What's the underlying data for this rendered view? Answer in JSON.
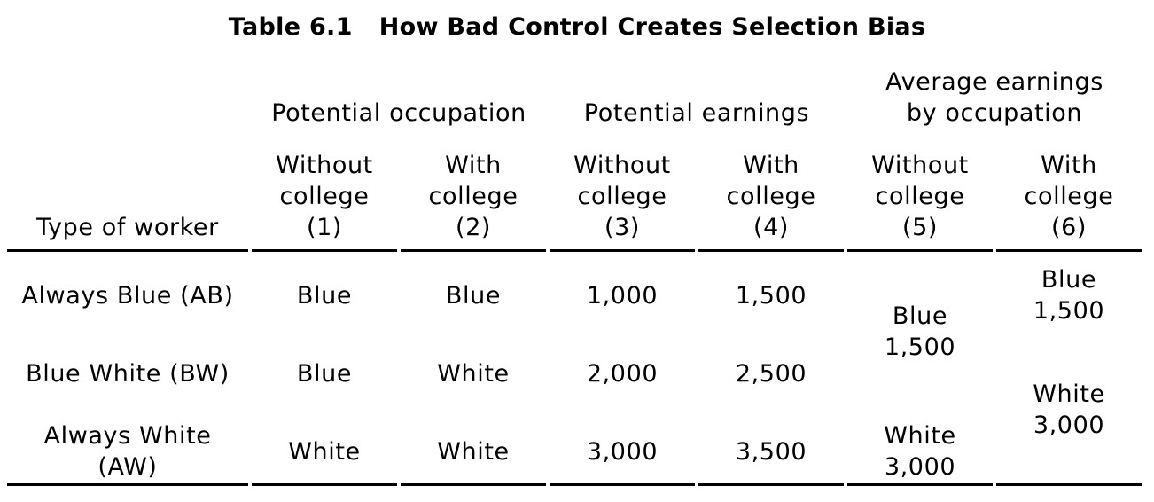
{
  "table": {
    "title_number": "Table 6.1",
    "title_text": "How Bad Control Creates Selection Bias",
    "groups": {
      "occupation": "Potential occupation",
      "earnings": "Potential earnings",
      "avg_line1": "Average earnings",
      "avg_line2": "by occupation"
    },
    "row_header": "Type of worker",
    "columns": [
      {
        "l1": "Without",
        "l2": "college",
        "l3": "(1)"
      },
      {
        "l1": "With",
        "l2": "college",
        "l3": "(2)"
      },
      {
        "l1": "Without",
        "l2": "college",
        "l3": "(3)"
      },
      {
        "l1": "With",
        "l2": "college",
        "l3": "(4)"
      },
      {
        "l1": "Without",
        "l2": "college",
        "l3": "(5)"
      },
      {
        "l1": "With",
        "l2": "college",
        "l3": "(6)"
      }
    ],
    "rows": [
      {
        "label": "Always Blue (AB)",
        "occ_without": "Blue",
        "occ_with": "Blue",
        "earn_without": "1,000",
        "earn_with": "1,500"
      },
      {
        "label": "Blue White (BW)",
        "occ_without": "Blue",
        "occ_with": "White",
        "earn_without": "2,000",
        "earn_with": "2,500"
      },
      {
        "label_line1": "Always White",
        "label_line2": "(AW)",
        "occ_without": "White",
        "occ_with": "White",
        "earn_without": "3,000",
        "earn_with": "3,500"
      }
    ],
    "avg_without": [
      {
        "occupation": "Blue",
        "value": "1,500"
      },
      {
        "occupation": "White",
        "value": "3,000"
      }
    ],
    "avg_with": [
      {
        "occupation": "Blue",
        "value": "1,500"
      },
      {
        "occupation": "White",
        "value": "3,000"
      }
    ]
  }
}
